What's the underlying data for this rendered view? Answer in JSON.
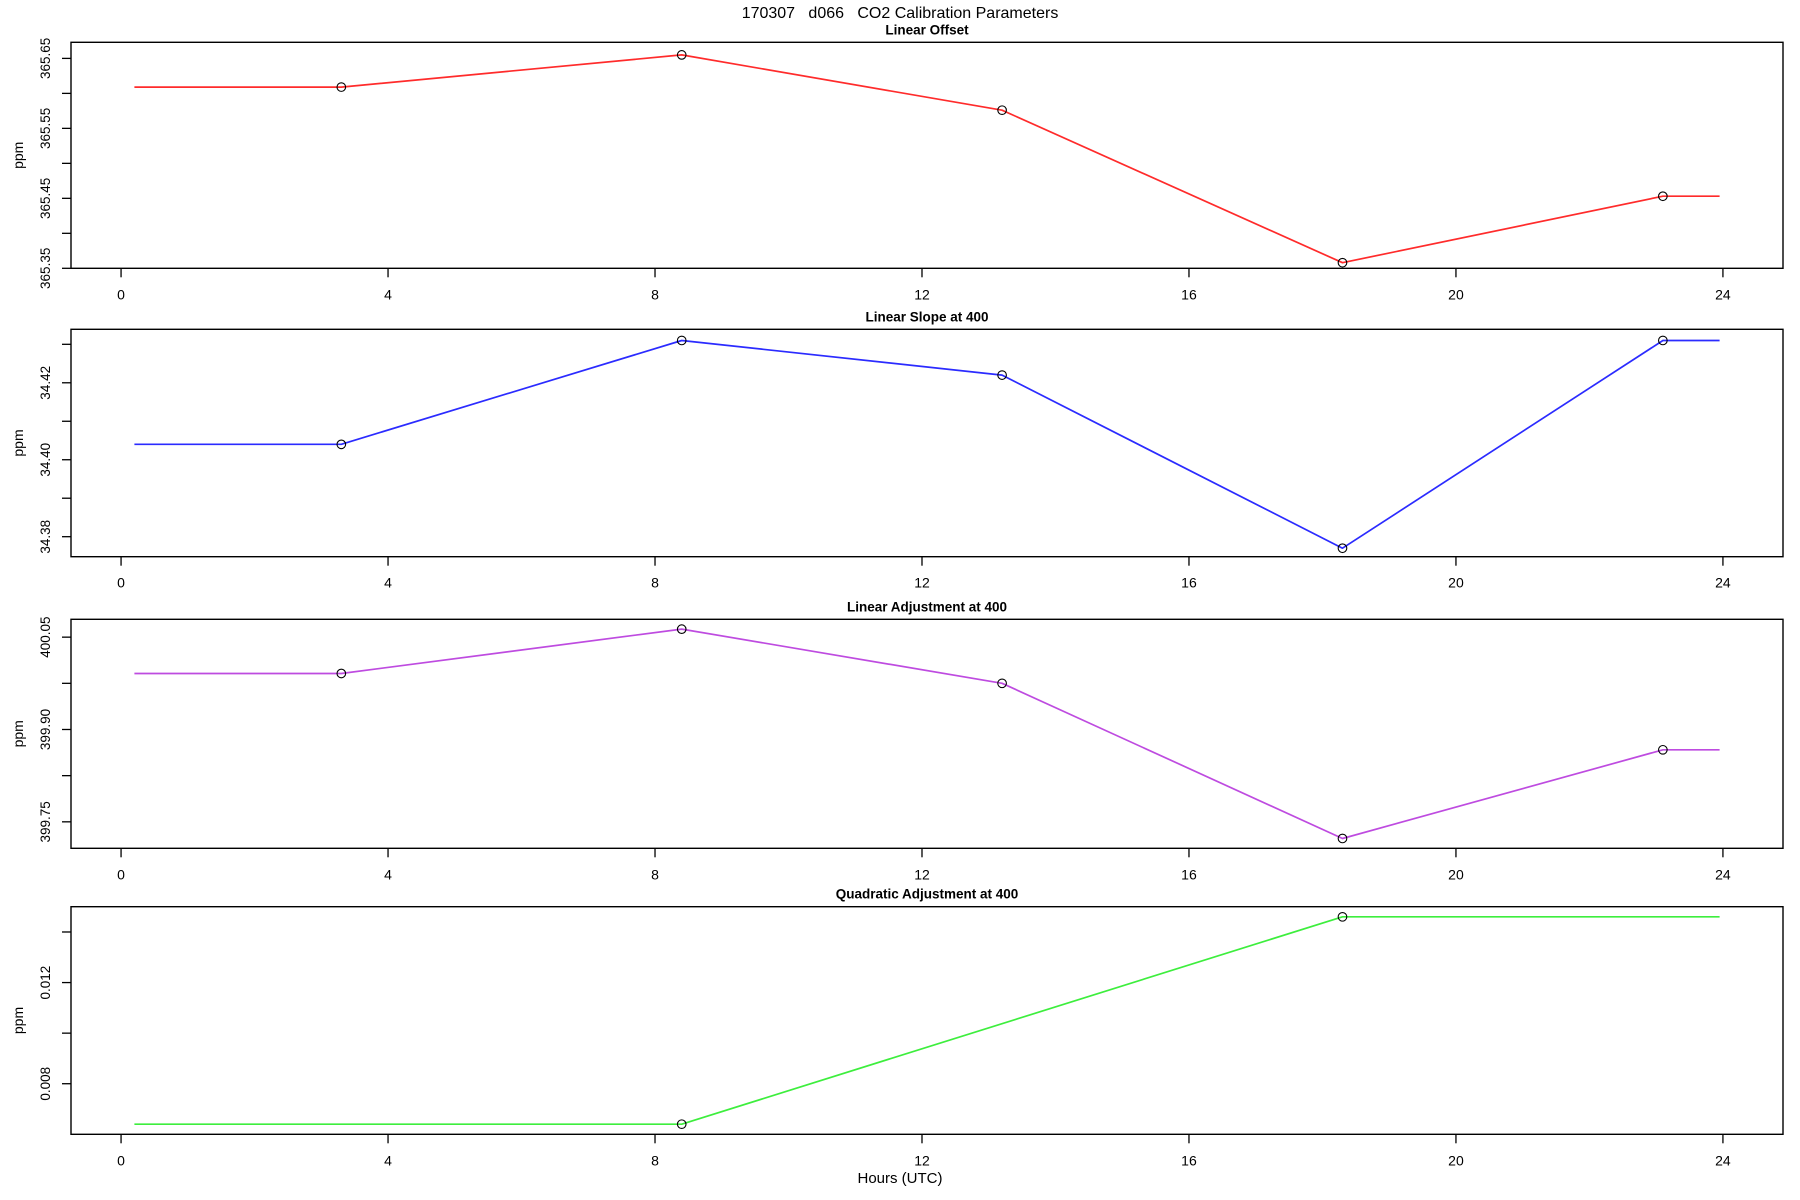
{
  "figure": {
    "title": "170307   d066   CO2 Calibration Parameters",
    "xlabel": "Hours (UTC)",
    "background": "#ffffff",
    "text_color": "#000000",
    "axis_color": "#000000",
    "x_ticks": [
      0,
      4,
      8,
      12,
      16,
      20,
      24
    ],
    "x_tick_labels": [
      "0",
      "4",
      "8",
      "12",
      "16",
      "20",
      "24"
    ],
    "xlim": [
      -0.75,
      24.9
    ]
  },
  "chart_data": [
    {
      "type": "line",
      "title": "Linear Offset",
      "ylabel": "ppm",
      "color": "#ff2b2b",
      "marker": "open-circle",
      "x": [
        3.3,
        8.4,
        13.2,
        18.3,
        23.1
      ],
      "y": [
        365.609,
        365.655,
        365.576,
        365.358,
        365.453
      ],
      "line_start_x": 0.2,
      "line_end_x": 23.95,
      "ylim": [
        365.35,
        365.673
      ],
      "yticks_major": [
        {
          "v": 365.35,
          "label": "365.35"
        },
        {
          "v": 365.45,
          "label": "365.45"
        },
        {
          "v": 365.55,
          "label": "365.55"
        },
        {
          "v": 365.65,
          "label": "365.65"
        }
      ],
      "yticks_minor": [
        365.4,
        365.5,
        365.6
      ]
    },
    {
      "type": "line",
      "title": "Linear Slope at 400",
      "ylabel": "ppm",
      "color": "#2b2bff",
      "marker": "open-circle",
      "x": [
        3.3,
        8.4,
        13.2,
        18.3,
        23.1
      ],
      "y": [
        34.404,
        34.431,
        34.422,
        34.377,
        34.431
      ],
      "line_start_x": 0.2,
      "line_end_x": 23.95,
      "ylim": [
        34.3748,
        34.4339
      ],
      "yticks_major": [
        {
          "v": 34.38,
          "label": "34.38"
        },
        {
          "v": 34.4,
          "label": "34.40"
        },
        {
          "v": 34.42,
          "label": "34.42"
        }
      ],
      "yticks_minor": [
        34.39,
        34.41,
        34.43
      ]
    },
    {
      "type": "line",
      "title": "Linear Adjustment at 400",
      "ylabel": "ppm",
      "color": "#be4be0",
      "marker": "open-circle",
      "x": [
        3.3,
        8.4,
        13.2,
        18.3,
        23.1
      ],
      "y": [
        399.991,
        400.063,
        399.975,
        399.723,
        399.867
      ],
      "line_start_x": 0.2,
      "line_end_x": 23.95,
      "ylim": [
        399.707,
        400.079
      ],
      "yticks_major": [
        {
          "v": 399.75,
          "label": "399.75"
        },
        {
          "v": 399.9,
          "label": "399.90"
        },
        {
          "v": 400.05,
          "label": "400.05"
        }
      ],
      "yticks_minor": [
        399.825,
        399.975
      ]
    },
    {
      "type": "line",
      "title": "Quadratic Adjustment at 400",
      "ylabel": "ppm",
      "color": "#3dee3d",
      "marker": "open-circle",
      "x": [
        8.4,
        18.3
      ],
      "y": [
        0.0064,
        0.0146
      ],
      "line_start_x": 0.2,
      "line_end_x": 23.95,
      "ylim": [
        0.006,
        0.015
      ],
      "yticks_major": [
        {
          "v": 0.008,
          "label": "0.008"
        },
        {
          "v": 0.012,
          "label": "0.012"
        }
      ],
      "yticks_minor": [
        0.01,
        0.014
      ]
    }
  ]
}
